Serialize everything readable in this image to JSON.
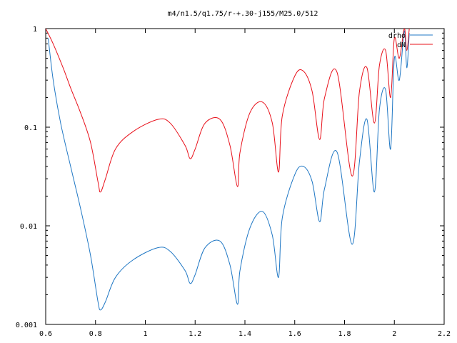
{
  "chart_data": {
    "type": "line",
    "title": "m4/n1.5/q1.75/r-+.30-j155/M25.0/512",
    "xlabel": "",
    "ylabel": "",
    "xlim": [
      0.6,
      2.2
    ],
    "ylim": [
      0.001,
      1
    ],
    "y_scale": "log",
    "grid": false,
    "legend_position": "top-right",
    "x_ticks": [
      "0.6",
      "0.8",
      "1",
      "1.2",
      "1.4",
      "1.6",
      "1.8",
      "2",
      "2.2"
    ],
    "y_ticks": [
      "0.001",
      "0.01",
      "0.1",
      "1"
    ],
    "series": [
      {
        "name": "drho",
        "color": "#1f77c4",
        "x": [
          0.61,
          0.63,
          0.66,
          0.7,
          0.74,
          0.78,
          0.81,
          0.82,
          0.84,
          0.88,
          0.95,
          1.05,
          1.1,
          1.16,
          1.18,
          1.2,
          1.24,
          1.3,
          1.34,
          1.37,
          1.38,
          1.42,
          1.47,
          1.51,
          1.535,
          1.55,
          1.6,
          1.635,
          1.67,
          1.7,
          1.72,
          1.77,
          1.83,
          1.86,
          1.89,
          1.92,
          1.94,
          1.965,
          1.985,
          2.0,
          2.02,
          2.04,
          2.05,
          2.06
        ],
        "y": [
          0.8,
          0.3,
          0.11,
          0.04,
          0.015,
          0.005,
          0.0017,
          0.0014,
          0.0017,
          0.003,
          0.0045,
          0.006,
          0.0055,
          0.0035,
          0.0026,
          0.0032,
          0.006,
          0.007,
          0.004,
          0.0016,
          0.0035,
          0.0095,
          0.014,
          0.008,
          0.003,
          0.012,
          0.033,
          0.04,
          0.028,
          0.011,
          0.024,
          0.056,
          0.0065,
          0.045,
          0.12,
          0.022,
          0.15,
          0.24,
          0.06,
          0.5,
          0.3,
          0.95,
          0.4,
          0.9
        ]
      },
      {
        "name": "dN",
        "color": "#e8101a",
        "x": [
          0.6,
          0.63,
          0.67,
          0.7,
          0.74,
          0.78,
          0.81,
          0.82,
          0.84,
          0.88,
          0.95,
          1.05,
          1.1,
          1.16,
          1.18,
          1.2,
          1.24,
          1.3,
          1.34,
          1.37,
          1.38,
          1.42,
          1.47,
          1.51,
          1.535,
          1.55,
          1.6,
          1.635,
          1.67,
          1.7,
          1.72,
          1.77,
          1.83,
          1.86,
          1.89,
          1.92,
          1.94,
          1.965,
          1.985,
          2.0,
          2.02,
          2.04,
          2.05,
          2.06
        ],
        "y": [
          1.0,
          0.7,
          0.4,
          0.25,
          0.14,
          0.07,
          0.028,
          0.022,
          0.03,
          0.06,
          0.09,
          0.12,
          0.11,
          0.065,
          0.048,
          0.06,
          0.11,
          0.12,
          0.065,
          0.025,
          0.055,
          0.14,
          0.18,
          0.11,
          0.035,
          0.13,
          0.33,
          0.37,
          0.23,
          0.075,
          0.2,
          0.36,
          0.032,
          0.23,
          0.4,
          0.11,
          0.42,
          0.6,
          0.2,
          0.8,
          0.5,
          1.0,
          0.6,
          1.0
        ]
      }
    ]
  }
}
